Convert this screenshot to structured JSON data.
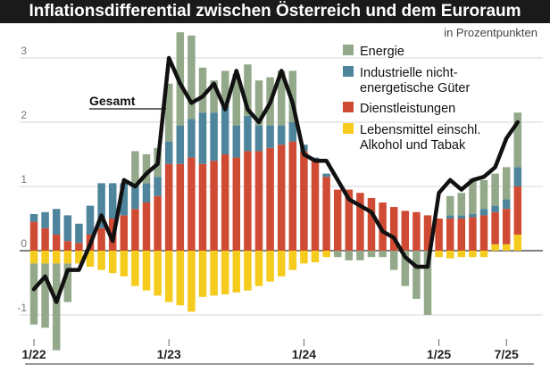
{
  "chart_data": {
    "type": "bar",
    "title": "Inflationsdifferential zwischen Österreich und dem Euroraum",
    "subtitle": "in Prozentpunkten",
    "ylim": [
      -1.55,
      3.45
    ],
    "y_ticks": [
      "3",
      "2",
      "1",
      "0",
      "-1"
    ],
    "y_tick_values": [
      3,
      2,
      1,
      0,
      -1
    ],
    "x_tick_labels": [
      "1/22",
      "1/23",
      "1/24",
      "1/25",
      "7/25"
    ],
    "x_tick_index": [
      0,
      12,
      24,
      36,
      42
    ],
    "grid": true,
    "legend_position": "top-right",
    "line_label": "Gesamt",
    "colors": {
      "energie": "#93a98a",
      "industrie": "#4e849c",
      "dienst": "#cf4b34",
      "lebensmittel": "#f5cb1d",
      "gesamt": "#111111"
    },
    "series": [
      {
        "key": "lebensmittel",
        "name": "Lebensmittel einschl. Alkohol und Tabak",
        "values": [
          -0.2,
          -0.2,
          -0.2,
          -0.2,
          -0.2,
          -0.25,
          -0.3,
          -0.35,
          -0.4,
          -0.55,
          -0.62,
          -0.7,
          -0.8,
          -0.85,
          -0.95,
          -0.72,
          -0.7,
          -0.68,
          -0.65,
          -0.62,
          -0.55,
          -0.48,
          -0.4,
          -0.3,
          -0.2,
          -0.18,
          -0.1,
          0.0,
          0.0,
          0.0,
          0.0,
          0.0,
          0.0,
          0.0,
          0.0,
          0.0,
          -0.1,
          -0.12,
          -0.1,
          -0.1,
          -0.1,
          0.1,
          0.1,
          0.25
        ]
      },
      {
        "key": "dienst",
        "name": "Dienstleistungen",
        "values": [
          0.45,
          0.35,
          0.25,
          0.15,
          0.12,
          0.25,
          0.35,
          0.5,
          0.55,
          0.65,
          0.75,
          0.85,
          1.35,
          1.35,
          1.45,
          1.35,
          1.4,
          1.5,
          1.45,
          1.55,
          1.55,
          1.6,
          1.65,
          1.7,
          1.55,
          1.4,
          1.15,
          0.95,
          0.95,
          0.9,
          0.82,
          0.75,
          0.68,
          0.62,
          0.6,
          0.55,
          0.5,
          0.5,
          0.5,
          0.52,
          0.55,
          0.5,
          0.55,
          0.75
        ]
      },
      {
        "key": "industrie",
        "name": "Industrielle nicht-energetische Güter",
        "values": [
          0.12,
          0.25,
          0.4,
          0.4,
          0.3,
          0.45,
          0.7,
          0.55,
          0.5,
          0.35,
          0.3,
          0.3,
          0.35,
          0.6,
          0.6,
          0.8,
          0.75,
          0.75,
          0.5,
          0.55,
          0.4,
          0.35,
          0.3,
          0.3,
          0.1,
          0.05,
          0.05,
          0.0,
          0.0,
          0.0,
          0.0,
          0.0,
          0.0,
          0.0,
          0.0,
          0.0,
          0.0,
          0.05,
          0.05,
          0.05,
          0.1,
          0.1,
          0.15,
          0.3
        ]
      },
      {
        "key": "energie",
        "name": "Energie",
        "values": [
          -0.95,
          -1.0,
          -1.35,
          -0.6,
          0.0,
          0.0,
          0.0,
          0.0,
          0.0,
          0.55,
          0.45,
          0.45,
          0.9,
          1.45,
          1.3,
          0.7,
          0.5,
          0.55,
          0.8,
          0.8,
          0.7,
          0.75,
          0.85,
          0.8,
          0.0,
          0.0,
          0.0,
          -0.1,
          -0.15,
          -0.15,
          -0.1,
          -0.1,
          -0.3,
          -0.55,
          -0.75,
          -1.0,
          0.0,
          0.3,
          0.35,
          0.55,
          0.45,
          0.5,
          0.5,
          0.85
        ]
      }
    ],
    "line": {
      "name": "Gesamt",
      "values": [
        -0.6,
        -0.4,
        -0.8,
        -0.3,
        -0.3,
        0.1,
        0.55,
        0.15,
        1.1,
        1.0,
        1.2,
        1.35,
        3.0,
        2.6,
        2.3,
        2.4,
        2.6,
        2.2,
        2.8,
        2.2,
        2.0,
        2.3,
        2.8,
        2.3,
        1.5,
        1.4,
        1.4,
        1.1,
        0.8,
        0.7,
        0.6,
        0.3,
        0.2,
        -0.1,
        -0.25,
        -0.25,
        0.9,
        1.1,
        0.95,
        1.1,
        1.15,
        1.3,
        1.75,
        2.0
      ]
    }
  }
}
